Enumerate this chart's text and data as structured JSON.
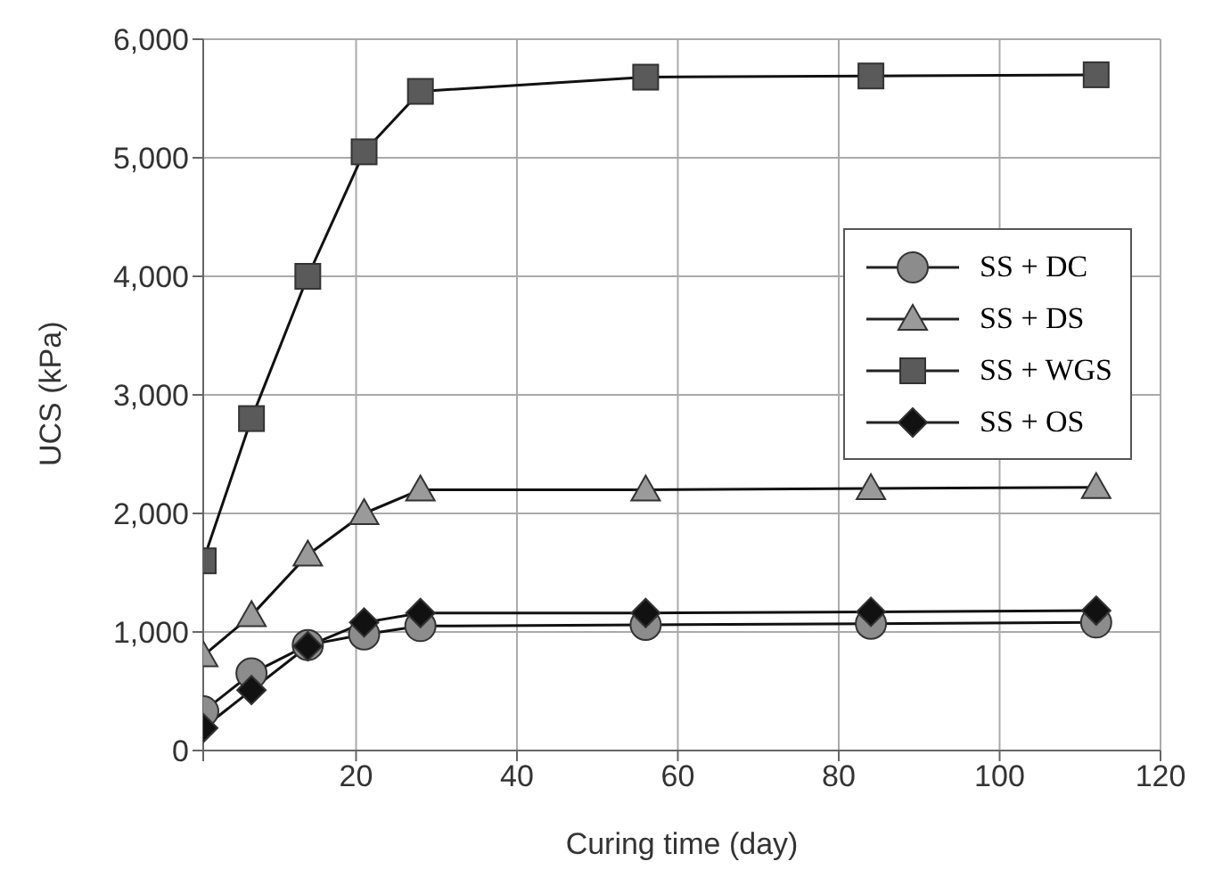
{
  "chart_data": {
    "type": "line",
    "xlabel": "Curing time (day)",
    "ylabel": "UCS (kPa)",
    "x": [
      1,
      7,
      14,
      21,
      28,
      56,
      84,
      112
    ],
    "series": [
      {
        "name": "SS + DC",
        "color": "#8c8c8c",
        "marker": "circle",
        "values": [
          330,
          650,
          890,
          980,
          1050,
          1060,
          1070,
          1080
        ]
      },
      {
        "name": "SS + DS",
        "color": "#9a9a9a",
        "marker": "triangle",
        "values": [
          800,
          1140,
          1650,
          2000,
          2200,
          2200,
          2210,
          2220
        ]
      },
      {
        "name": "SS + WGS",
        "color": "#5a5a5a",
        "marker": "square",
        "values": [
          1600,
          2800,
          4000,
          5050,
          5560,
          5680,
          5690,
          5700
        ]
      },
      {
        "name": "SS + OS",
        "color": "#111111",
        "marker": "diamond",
        "values": [
          190,
          510,
          880,
          1080,
          1160,
          1160,
          1170,
          1180
        ]
      }
    ],
    "xlim": [
      1,
      120
    ],
    "xticks": [
      {
        "value": 1,
        "label": null
      },
      20,
      40,
      60,
      80,
      100,
      120
    ],
    "ylim": [
      0,
      6000
    ],
    "yticks": [
      {
        "value": 0,
        "label": "0"
      },
      {
        "value": 1000,
        "label": "1,000"
      },
      {
        "value": 2000,
        "label": "2,000"
      },
      {
        "value": 3000,
        "label": "3,000"
      },
      {
        "value": 4000,
        "label": "4,000"
      },
      {
        "value": 5000,
        "label": "5,000"
      },
      {
        "value": 6000,
        "label": "6,000"
      }
    ],
    "grid": true,
    "legend": "right",
    "line_style": "solid"
  }
}
